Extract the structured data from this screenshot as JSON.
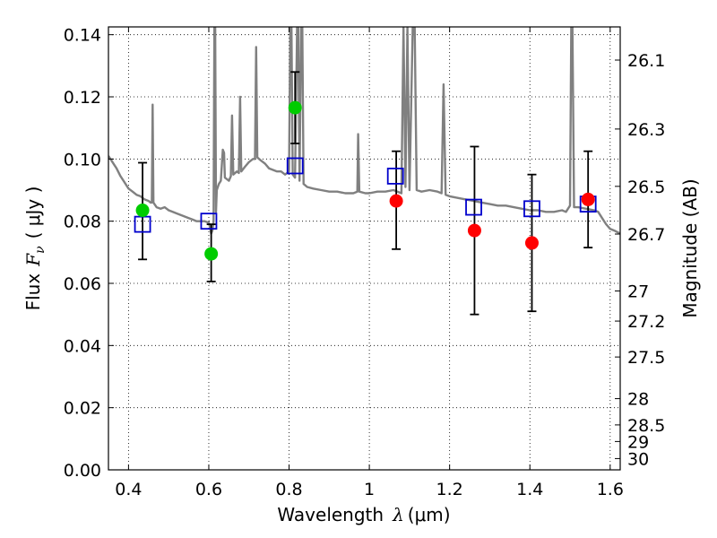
{
  "chart_data": {
    "type": "scatter",
    "xlabel": {
      "text": "Wavelength",
      "symbol": "λ",
      "unit": "(μm)"
    },
    "ylabel": {
      "text": "Flux",
      "symbol": "F",
      "subscript": "ν",
      "unit": "( μJy )"
    },
    "ylabel_right": "Magnitude (AB)",
    "xlim": [
      0.35,
      1.625
    ],
    "ylim": [
      0.0,
      0.1425
    ],
    "x_ticks": [
      0.4,
      0.6,
      0.8,
      1.0,
      1.2,
      1.4,
      1.6
    ],
    "x_tick_labels": [
      "0.4",
      "0.6",
      "0.8",
      "1",
      "1.2",
      "1.4",
      "1.6"
    ],
    "y_ticks": [
      0.0,
      0.02,
      0.04,
      0.06,
      0.08,
      0.1,
      0.12,
      0.14
    ],
    "y_tick_labels": [
      "0.00",
      "0.02",
      "0.04",
      "0.06",
      "0.08",
      "0.10",
      "0.12",
      "0.14"
    ],
    "mag_ticks": [
      26.1,
      26.3,
      26.5,
      26.7,
      27,
      27.2,
      27.5,
      28,
      28.5,
      29,
      30
    ],
    "mag_tick_labels": [
      "26.1",
      "26.3",
      "26.5",
      "26.7",
      "27",
      "27.2",
      "27.5",
      "28",
      "28.5",
      "29",
      "30"
    ],
    "grid": true,
    "colors": {
      "spectrum": "#808080",
      "green_points": "#00cc00",
      "red_points": "#ff0000",
      "model_squares": "#0000cc",
      "error_bars": "#000000"
    },
    "series": [
      {
        "name": "spectrum",
        "style": "line",
        "points": [
          [
            0.35,
            0.101
          ],
          [
            0.36,
            0.099
          ],
          [
            0.37,
            0.097
          ],
          [
            0.38,
            0.0945
          ],
          [
            0.39,
            0.0925
          ],
          [
            0.4,
            0.0905
          ],
          [
            0.41,
            0.0895
          ],
          [
            0.42,
            0.0885
          ],
          [
            0.43,
            0.088
          ],
          [
            0.44,
            0.087
          ],
          [
            0.45,
            0.0865
          ],
          [
            0.455,
            0.086
          ],
          [
            0.458,
            0.086
          ],
          [
            0.46,
            0.1175
          ],
          [
            0.462,
            0.086
          ],
          [
            0.47,
            0.0845
          ],
          [
            0.48,
            0.084
          ],
          [
            0.49,
            0.0845
          ],
          [
            0.5,
            0.0835
          ],
          [
            0.51,
            0.083
          ],
          [
            0.52,
            0.0825
          ],
          [
            0.53,
            0.082
          ],
          [
            0.54,
            0.0815
          ],
          [
            0.55,
            0.081
          ],
          [
            0.56,
            0.0805
          ],
          [
            0.57,
            0.08
          ],
          [
            0.58,
            0.08
          ],
          [
            0.59,
            0.08
          ],
          [
            0.6,
            0.0795
          ],
          [
            0.603,
            0.078
          ],
          [
            0.606,
            0.076
          ],
          [
            0.609,
            0.077
          ],
          [
            0.612,
            0.08
          ],
          [
            0.614,
            0.1425
          ],
          [
            0.616,
            0.1425
          ],
          [
            0.618,
            0.083
          ],
          [
            0.62,
            0.09
          ],
          [
            0.625,
            0.092
          ],
          [
            0.63,
            0.093
          ],
          [
            0.635,
            0.103
          ],
          [
            0.638,
            0.102
          ],
          [
            0.64,
            0.094
          ],
          [
            0.65,
            0.093
          ],
          [
            0.655,
            0.0945
          ],
          [
            0.658,
            0.114
          ],
          [
            0.661,
            0.095
          ],
          [
            0.67,
            0.096
          ],
          [
            0.675,
            0.0955
          ],
          [
            0.678,
            0.12
          ],
          [
            0.681,
            0.096
          ],
          [
            0.69,
            0.0975
          ],
          [
            0.7,
            0.099
          ],
          [
            0.71,
            0.1
          ],
          [
            0.715,
            0.1
          ],
          [
            0.718,
            0.136
          ],
          [
            0.721,
            0.1005
          ],
          [
            0.73,
            0.0995
          ],
          [
            0.74,
            0.0985
          ],
          [
            0.75,
            0.097
          ],
          [
            0.76,
            0.0965
          ],
          [
            0.77,
            0.096
          ],
          [
            0.78,
            0.096
          ],
          [
            0.79,
            0.095
          ],
          [
            0.8,
            0.096
          ],
          [
            0.803,
            0.1425
          ],
          [
            0.806,
            0.1425
          ],
          [
            0.809,
            0.095
          ],
          [
            0.815,
            0.094
          ],
          [
            0.82,
            0.1425
          ],
          [
            0.823,
            0.1425
          ],
          [
            0.826,
            0.093
          ],
          [
            0.83,
            0.1425
          ],
          [
            0.833,
            0.1425
          ],
          [
            0.836,
            0.092
          ],
          [
            0.845,
            0.091
          ],
          [
            0.86,
            0.0905
          ],
          [
            0.88,
            0.09
          ],
          [
            0.9,
            0.0895
          ],
          [
            0.92,
            0.0895
          ],
          [
            0.94,
            0.089
          ],
          [
            0.96,
            0.089
          ],
          [
            0.97,
            0.0895
          ],
          [
            0.972,
            0.108
          ],
          [
            0.975,
            0.0895
          ],
          [
            0.99,
            0.089
          ],
          [
            1.0,
            0.089
          ],
          [
            1.02,
            0.0895
          ],
          [
            1.04,
            0.0895
          ],
          [
            1.06,
            0.09
          ],
          [
            1.08,
            0.089
          ],
          [
            1.085,
            0.1425
          ],
          [
            1.09,
            0.091
          ],
          [
            1.095,
            0.1425
          ],
          [
            1.1,
            0.09
          ],
          [
            1.108,
            0.1425
          ],
          [
            1.113,
            0.1425
          ],
          [
            1.118,
            0.09
          ],
          [
            1.13,
            0.0895
          ],
          [
            1.15,
            0.09
          ],
          [
            1.17,
            0.0895
          ],
          [
            1.18,
            0.089
          ],
          [
            1.185,
            0.124
          ],
          [
            1.19,
            0.0885
          ],
          [
            1.2,
            0.088
          ],
          [
            1.22,
            0.0875
          ],
          [
            1.24,
            0.087
          ],
          [
            1.26,
            0.0865
          ],
          [
            1.28,
            0.086
          ],
          [
            1.3,
            0.0855
          ],
          [
            1.32,
            0.085
          ],
          [
            1.34,
            0.085
          ],
          [
            1.36,
            0.0845
          ],
          [
            1.38,
            0.084
          ],
          [
            1.4,
            0.0835
          ],
          [
            1.42,
            0.0835
          ],
          [
            1.44,
            0.083
          ],
          [
            1.46,
            0.083
          ],
          [
            1.48,
            0.0835
          ],
          [
            1.49,
            0.083
          ],
          [
            1.5,
            0.085
          ],
          [
            1.503,
            0.1425
          ],
          [
            1.506,
            0.1425
          ],
          [
            1.51,
            0.0845
          ],
          [
            1.52,
            0.0845
          ],
          [
            1.54,
            0.084
          ],
          [
            1.56,
            0.0835
          ],
          [
            1.57,
            0.083
          ],
          [
            1.575,
            0.082
          ],
          [
            1.58,
            0.081
          ],
          [
            1.59,
            0.079
          ],
          [
            1.6,
            0.0775
          ],
          [
            1.61,
            0.077
          ],
          [
            1.625,
            0.076
          ]
        ]
      },
      {
        "name": "green points",
        "style": "circle",
        "points": [
          [
            0.435,
            0.0835
          ],
          [
            0.606,
            0.0695
          ],
          [
            0.815,
            0.1165
          ]
        ]
      },
      {
        "name": "red points",
        "style": "circle",
        "points": [
          [
            1.067,
            0.0865
          ],
          [
            1.262,
            0.077
          ],
          [
            1.405,
            0.073
          ],
          [
            1.545,
            0.087
          ]
        ]
      },
      {
        "name": "model squares",
        "style": "open-square",
        "points": [
          [
            0.435,
            0.079
          ],
          [
            0.6,
            0.08
          ],
          [
            0.815,
            0.0978
          ],
          [
            1.065,
            0.0945
          ],
          [
            1.26,
            0.0845
          ],
          [
            1.405,
            0.084
          ],
          [
            1.545,
            0.0855
          ]
        ]
      },
      {
        "name": "error bars",
        "style": "errorbar",
        "points": [
          {
            "x": 0.435,
            "low": 0.0677,
            "high": 0.0988
          },
          {
            "x": 0.606,
            "low": 0.0606,
            "high": 0.079
          },
          {
            "x": 0.815,
            "low": 0.105,
            "high": 0.128
          },
          {
            "x": 1.067,
            "low": 0.071,
            "high": 0.1025
          },
          {
            "x": 1.262,
            "low": 0.05,
            "high": 0.104
          },
          {
            "x": 1.405,
            "low": 0.051,
            "high": 0.095
          },
          {
            "x": 1.545,
            "low": 0.0715,
            "high": 0.1025
          }
        ]
      }
    ]
  }
}
